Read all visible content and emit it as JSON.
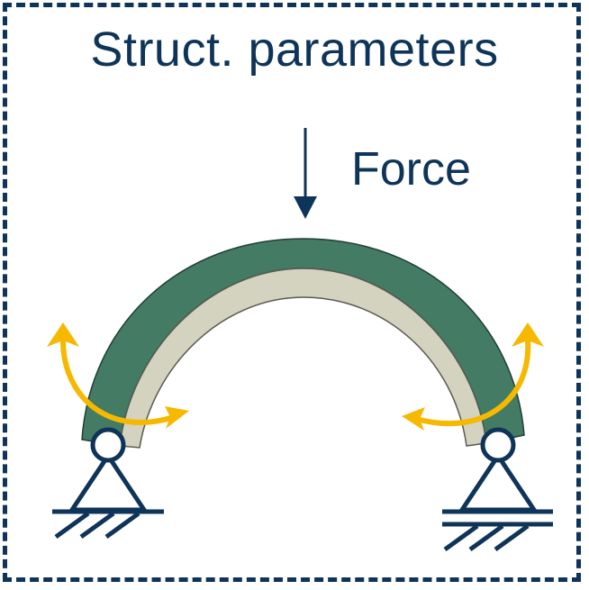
{
  "title": "Struct. parameters",
  "force_label": "Force",
  "colors": {
    "frame": "#0e3459",
    "arch_outer_layer": "#437b64",
    "arch_inner_layer": "#d3d3c0",
    "moment_arrows": "#f7b800",
    "supports": "#0e3459"
  },
  "elements": {
    "left_support": "pinned support",
    "right_support": "roller support",
    "moment_arrows": "rotation arrows at both supports",
    "force_arrow": "downward load at crown"
  }
}
